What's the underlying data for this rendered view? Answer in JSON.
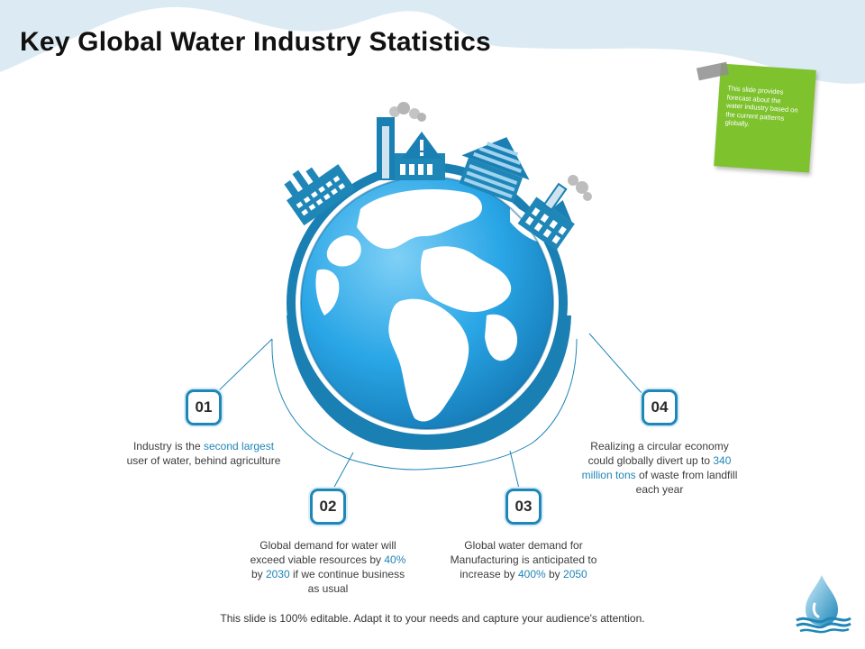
{
  "title": "Key Global Water Industry Statistics",
  "note": {
    "text": "This slide provides forecast about the water industry based on the current patterns globally."
  },
  "stats": [
    {
      "number": "01",
      "pre": "Industry is the ",
      "hl1": "second largest",
      "post": " user of water, behind agriculture"
    },
    {
      "number": "02",
      "pre": "Global demand for water will exceed viable resources by ",
      "hl1": "40%",
      "mid": " by ",
      "hl2": "2030",
      "post": " if we continue business as usual"
    },
    {
      "number": "03",
      "pre": "Global water demand for Manufacturing is anticipated to increase by ",
      "hl1": "400%",
      "mid": " by ",
      "hl2": "2050",
      "post": ""
    },
    {
      "number": "04",
      "pre": "Realizing a circular economy could globally divert up to ",
      "hl1": "340 million tons",
      "post": " of waste from landfill each year"
    }
  ],
  "footer": "This slide is 100% editable. Adapt it to your needs and capture your audience's attention.",
  "colors": {
    "accent": "#1f86b8",
    "globe_ocean": "#2aa6e6",
    "sticky": "#7ec22e",
    "wave": "#dcebf3"
  },
  "icons": [
    "globe-icon",
    "factory-icon",
    "warning-sign-icon",
    "water-drop-icon"
  ]
}
